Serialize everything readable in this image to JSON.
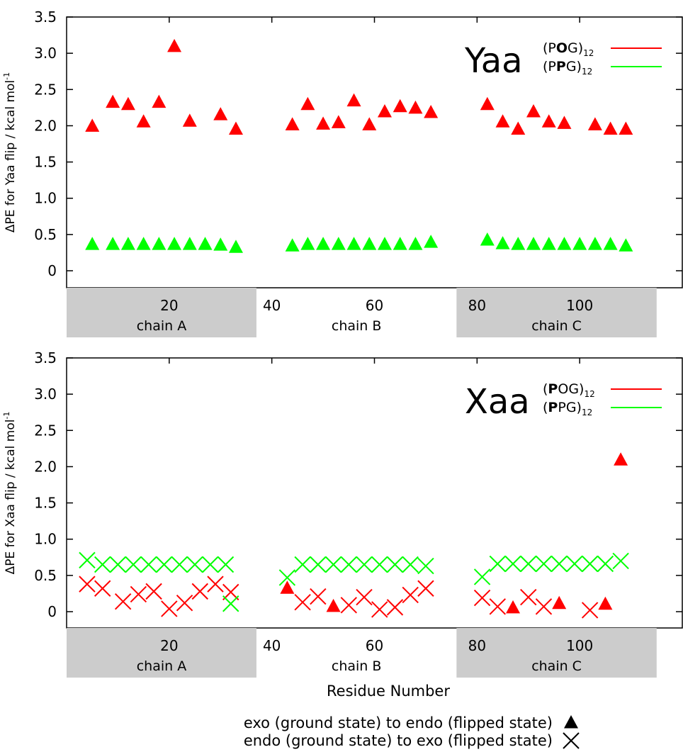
{
  "chart_data": [
    {
      "type": "scatter",
      "panel_tag": "Yaa",
      "ylabel": "ΔPE for Yaa flip / kcal mol",
      "ylabel_sup": "-1",
      "ylim": [
        -0.2,
        3.5
      ],
      "yticks": [
        "0",
        "0.5",
        "1.0",
        "1.5",
        "2.0",
        "2.5",
        "3.0",
        "3.5"
      ],
      "xlim": [
        0,
        120
      ],
      "xticks": [
        "20",
        "40",
        "60",
        "80",
        "100"
      ],
      "chains": [
        {
          "label": "chain A",
          "range": [
            0,
            37
          ],
          "shaded": true
        },
        {
          "label": "chain B",
          "range": [
            37,
            76
          ],
          "shaded": false
        },
        {
          "label": "chain C",
          "range": [
            76,
            115
          ],
          "shaded": true
        }
      ],
      "legend": [
        {
          "pre": "(P",
          "bold": "O",
          "post": "G)",
          "sub": "12",
          "color": "#ff0000"
        },
        {
          "pre": "(P",
          "bold": "P",
          "post": "G)",
          "sub": "12",
          "color": "#00ff00"
        }
      ],
      "series": [
        {
          "color": "#ff0000",
          "marker": "triangle",
          "x": [
            5,
            9,
            12,
            15,
            18,
            21,
            24,
            30,
            33,
            44,
            47,
            50,
            53,
            56,
            59,
            62,
            65,
            68,
            71,
            82,
            85,
            88,
            91,
            94,
            97,
            103,
            106,
            109
          ],
          "y": [
            2.0,
            2.33,
            2.3,
            2.06,
            2.33,
            3.1,
            2.07,
            2.16,
            1.96,
            2.02,
            2.3,
            2.03,
            2.05,
            2.35,
            2.02,
            2.2,
            2.27,
            2.25,
            2.19,
            2.3,
            2.06,
            1.96,
            2.2,
            2.06,
            2.04,
            2.02,
            1.96,
            1.96
          ]
        },
        {
          "color": "#00ff00",
          "marker": "triangle",
          "x": [
            5,
            9,
            12,
            15,
            18,
            21,
            24,
            27,
            30,
            33,
            44,
            47,
            50,
            53,
            56,
            59,
            62,
            65,
            68,
            71,
            82,
            85,
            88,
            91,
            94,
            97,
            100,
            103,
            106,
            109
          ],
          "y": [
            0.37,
            0.37,
            0.37,
            0.37,
            0.37,
            0.37,
            0.37,
            0.37,
            0.36,
            0.33,
            0.35,
            0.37,
            0.37,
            0.37,
            0.37,
            0.37,
            0.37,
            0.37,
            0.37,
            0.4,
            0.43,
            0.38,
            0.37,
            0.37,
            0.37,
            0.37,
            0.37,
            0.37,
            0.37,
            0.35
          ]
        }
      ]
    },
    {
      "type": "scatter",
      "panel_tag": "Xaa",
      "ylabel": "ΔPE for Xaa flip / kcal mol",
      "ylabel_sup": "-1",
      "ylim": [
        -0.2,
        3.5
      ],
      "yticks": [
        "0",
        "0.5",
        "1.0",
        "1.5",
        "2.0",
        "2.5",
        "3.0",
        "3.5"
      ],
      "xlim": [
        0,
        120
      ],
      "xticks": [
        "20",
        "40",
        "60",
        "80",
        "100"
      ],
      "xlabel": "Residue Number",
      "chains": [
        {
          "label": "chain A",
          "range": [
            0,
            37
          ],
          "shaded": true
        },
        {
          "label": "chain B",
          "range": [
            37,
            76
          ],
          "shaded": false
        },
        {
          "label": "chain C",
          "range": [
            76,
            115
          ],
          "shaded": true
        }
      ],
      "legend": [
        {
          "pre": "(",
          "bold": "P",
          "post": "OG)",
          "sub": "12",
          "color": "#ff0000"
        },
        {
          "pre": "(",
          "bold": "P",
          "post": "PG)",
          "sub": "12",
          "color": "#00ff00"
        }
      ],
      "series": [
        {
          "color": "#ff0000",
          "marker": "triangle",
          "x": [
            43,
            52,
            87,
            96,
            105,
            108
          ],
          "y": [
            0.33,
            0.08,
            0.06,
            0.12,
            0.11,
            2.1
          ]
        },
        {
          "color": "#ff0000",
          "marker": "cross",
          "x": [
            4,
            7,
            11,
            14,
            17,
            20,
            23,
            26,
            29,
            32,
            46,
            49,
            55,
            58,
            61,
            64,
            67,
            70,
            81,
            84,
            90,
            93,
            102
          ],
          "y": [
            0.38,
            0.32,
            0.14,
            0.24,
            0.28,
            0.04,
            0.12,
            0.28,
            0.38,
            0.27,
            0.13,
            0.21,
            0.09,
            0.2,
            0.03,
            0.06,
            0.23,
            0.32,
            0.19,
            0.07,
            0.2,
            0.07,
            0.02
          ]
        },
        {
          "color": "#00ff00",
          "marker": "cross",
          "x": [
            4,
            7,
            10,
            13,
            16,
            19,
            22,
            25,
            28,
            31,
            32,
            43,
            46,
            49,
            52,
            55,
            58,
            61,
            64,
            67,
            70,
            81,
            84,
            87,
            90,
            93,
            96,
            99,
            102,
            105,
            108
          ],
          "y": [
            0.71,
            0.65,
            0.65,
            0.65,
            0.65,
            0.65,
            0.65,
            0.65,
            0.65,
            0.65,
            0.11,
            0.47,
            0.65,
            0.65,
            0.65,
            0.65,
            0.65,
            0.65,
            0.65,
            0.65,
            0.63,
            0.48,
            0.66,
            0.66,
            0.66,
            0.66,
            0.66,
            0.66,
            0.66,
            0.66,
            0.7
          ]
        }
      ]
    }
  ],
  "marker_legend": [
    {
      "text": "exo (ground state) to endo (flipped state)",
      "marker": "triangle"
    },
    {
      "text": "endo (ground state) to exo (flipped state)",
      "marker": "cross"
    }
  ]
}
